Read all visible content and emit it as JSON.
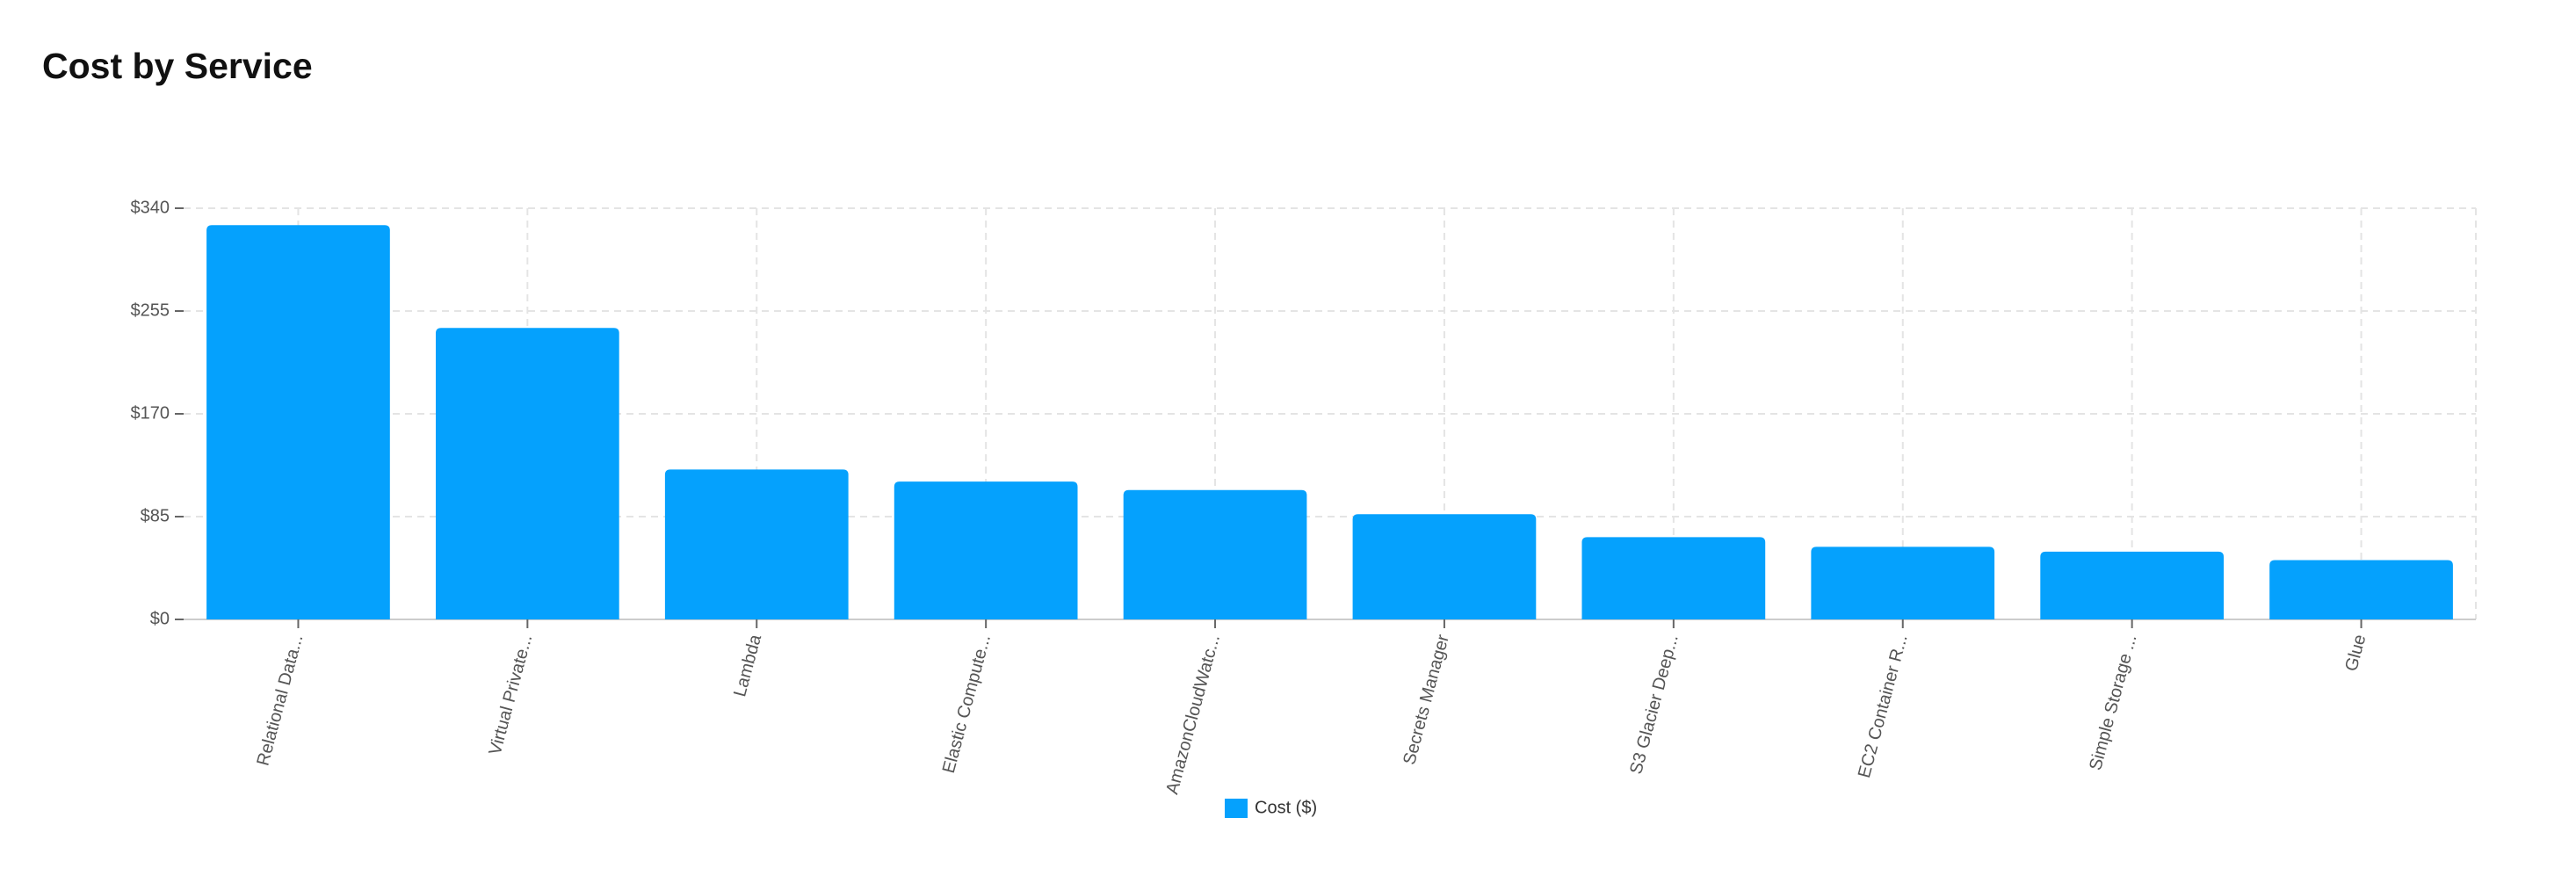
{
  "chart_data": {
    "type": "bar",
    "title": "Cost by Service",
    "categories": [
      "Relational Data...",
      "Virtual Private...",
      "Lambda",
      "Elastic Compute...",
      "AmazonCloudWatc...",
      "Secrets Manager",
      "S3 Glacier Deep...",
      "EC2 Container R...",
      "Simple Storage ...",
      "Glue"
    ],
    "series": [
      {
        "name": "Cost ($)",
        "color": "#05a1fd",
        "values": [
          326,
          241,
          124,
          114,
          107,
          87,
          68,
          60,
          56,
          49
        ]
      }
    ],
    "ylim": [
      0,
      340
    ],
    "yticks": [
      {
        "value": 0,
        "label": "$0"
      },
      {
        "value": 85,
        "label": "$85"
      },
      {
        "value": 170,
        "label": "$170"
      },
      {
        "value": 255,
        "label": "$255"
      },
      {
        "value": 340,
        "label": "$340"
      }
    ],
    "grid": true
  }
}
